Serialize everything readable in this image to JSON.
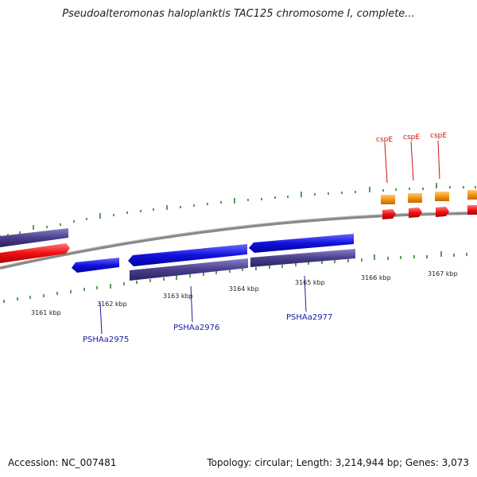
{
  "title": "Pseudoalteromonas haloplanktis TAC125 chromosome I, complete...",
  "footer": {
    "accession": "Accession: NC_007481",
    "summary": "Topology: circular; Length: 3,214,944 bp; Genes: 3,073"
  },
  "scale_labels": [
    "3161 kbp",
    "3162 kbp",
    "3163 kbp",
    "3164 kbp",
    "3165 kbp",
    "3166 kbp",
    "3167 kbp"
  ],
  "gene_labels": [
    "PSHAa2975",
    "PSHAa2976",
    "PSHAa2977"
  ],
  "cspe_labels": [
    "cspE",
    "cspE",
    "cspE"
  ],
  "colors": {
    "forward_gene": "#1111dd",
    "cds_purple": "#4a3f8c",
    "red_feature": "#ee1111",
    "orange_feature": "#f5960f",
    "backbone": "#888888",
    "tick_green": "#1e7a1e"
  }
}
